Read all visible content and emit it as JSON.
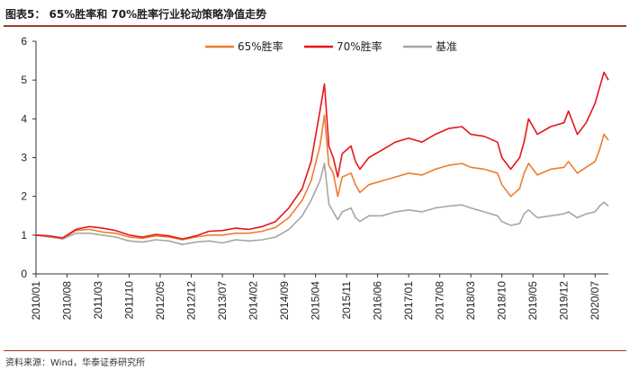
{
  "figure": {
    "title": "图表5：  65%胜率和 70%胜率行业轮动策略净值走势",
    "source": "资料来源：Wind，华泰证券研究所"
  },
  "chart_data": {
    "type": "line",
    "ylim": [
      0,
      6
    ],
    "yticks": [
      0,
      1,
      2,
      3,
      4,
      5,
      6
    ],
    "grid": false,
    "legend_position": "top-right",
    "x_tick_labels": [
      "2010/01",
      "2010/08",
      "2011/03",
      "2011/10",
      "2012/05",
      "2012/12",
      "2013/07",
      "2014/02",
      "2014/09",
      "2015/04",
      "2015/11",
      "2016/06",
      "2017/01",
      "2017/08",
      "2018/03",
      "2018/10",
      "2019/05",
      "2019/12",
      "2020/07"
    ],
    "x": [
      "2010/01",
      "2010/04",
      "2010/07",
      "2010/10",
      "2011/01",
      "2011/04",
      "2011/07",
      "2011/10",
      "2012/01",
      "2012/04",
      "2012/07",
      "2012/10",
      "2013/01",
      "2013/04",
      "2013/07",
      "2013/10",
      "2014/01",
      "2014/04",
      "2014/07",
      "2014/10",
      "2015/01",
      "2015/03",
      "2015/05",
      "2015/06",
      "2015/07",
      "2015/08",
      "2015/09",
      "2015/10",
      "2015/12",
      "2016/01",
      "2016/02",
      "2016/04",
      "2016/07",
      "2016/10",
      "2017/01",
      "2017/04",
      "2017/07",
      "2017/10",
      "2018/01",
      "2018/03",
      "2018/06",
      "2018/09",
      "2018/10",
      "2018/12",
      "2019/02",
      "2019/03",
      "2019/04",
      "2019/06",
      "2019/09",
      "2019/12",
      "2020/01",
      "2020/03",
      "2020/05",
      "2020/07",
      "2020/08",
      "2020/09",
      "2020/10"
    ],
    "series": [
      {
        "name": "65%胜率",
        "color": "#ed7d31",
        "values": [
          1.0,
          0.97,
          0.92,
          1.12,
          1.15,
          1.08,
          1.05,
          0.95,
          0.92,
          0.98,
          0.95,
          0.88,
          0.95,
          1.0,
          1.0,
          1.05,
          1.05,
          1.1,
          1.2,
          1.45,
          1.9,
          2.4,
          3.3,
          4.1,
          2.8,
          2.6,
          2.0,
          2.5,
          2.6,
          2.3,
          2.1,
          2.3,
          2.4,
          2.5,
          2.6,
          2.55,
          2.7,
          2.8,
          2.85,
          2.75,
          2.7,
          2.6,
          2.3,
          2.0,
          2.2,
          2.6,
          2.85,
          2.55,
          2.7,
          2.75,
          2.9,
          2.6,
          2.75,
          2.9,
          3.2,
          3.6,
          3.45
        ]
      },
      {
        "name": "70%胜率",
        "color": "#e8151a",
        "values": [
          1.0,
          0.98,
          0.93,
          1.15,
          1.22,
          1.18,
          1.12,
          1.0,
          0.95,
          1.02,
          0.98,
          0.9,
          0.98,
          1.1,
          1.12,
          1.18,
          1.15,
          1.22,
          1.35,
          1.7,
          2.2,
          2.9,
          4.2,
          4.9,
          3.3,
          3.0,
          2.5,
          3.1,
          3.3,
          2.9,
          2.7,
          3.0,
          3.2,
          3.4,
          3.5,
          3.4,
          3.6,
          3.75,
          3.8,
          3.6,
          3.55,
          3.4,
          3.0,
          2.7,
          3.0,
          3.4,
          4.0,
          3.6,
          3.8,
          3.9,
          4.2,
          3.6,
          3.9,
          4.4,
          4.8,
          5.2,
          5.0
        ]
      },
      {
        "name": "基准",
        "color": "#a6a6a6",
        "values": [
          1.0,
          0.95,
          0.9,
          1.05,
          1.05,
          1.0,
          0.95,
          0.85,
          0.82,
          0.88,
          0.85,
          0.76,
          0.82,
          0.85,
          0.8,
          0.88,
          0.85,
          0.88,
          0.95,
          1.15,
          1.5,
          1.9,
          2.4,
          2.85,
          1.8,
          1.6,
          1.4,
          1.6,
          1.7,
          1.45,
          1.35,
          1.5,
          1.5,
          1.6,
          1.65,
          1.6,
          1.7,
          1.75,
          1.78,
          1.7,
          1.6,
          1.5,
          1.35,
          1.25,
          1.3,
          1.55,
          1.65,
          1.45,
          1.5,
          1.55,
          1.6,
          1.45,
          1.55,
          1.6,
          1.75,
          1.85,
          1.75
        ]
      }
    ]
  }
}
